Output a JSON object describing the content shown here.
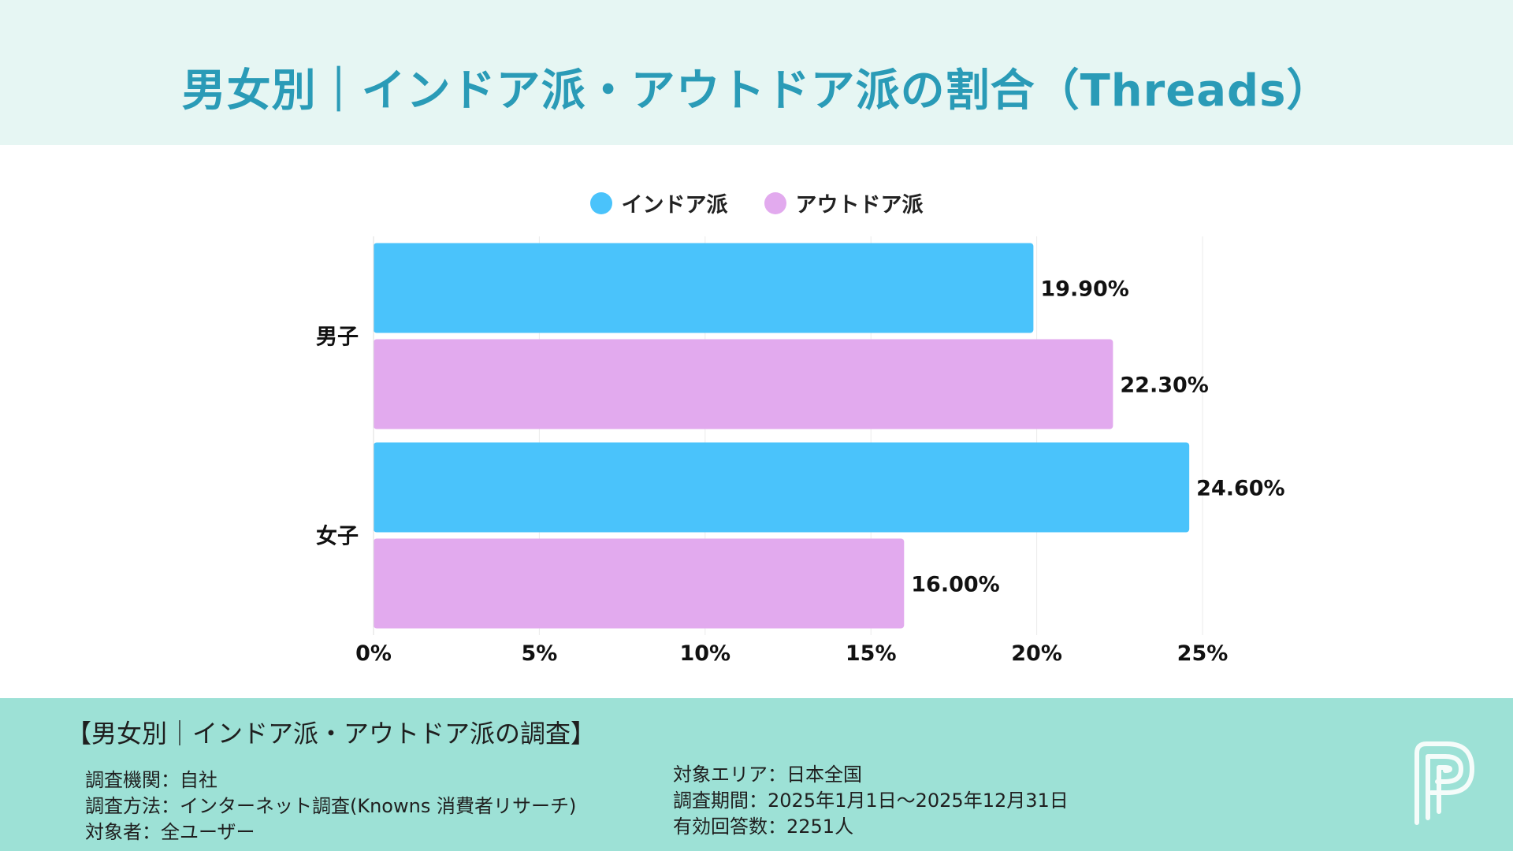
{
  "title": "男女別｜インドア派・アウトドア派の割合（Threads）",
  "colors": {
    "indoor": "#4ac3fb",
    "outdoor": "#e2aaee",
    "title": "#2a9bb7",
    "header_bg": "#e6f6f3",
    "footer_bg": "#9de1d6"
  },
  "chart_data": {
    "type": "bar",
    "orientation": "horizontal",
    "categories": [
      "男子",
      "女子"
    ],
    "series": [
      {
        "name": "インドア派",
        "values": [
          19.9,
          24.6
        ],
        "labels": [
          "19.90%",
          "24.60%"
        ],
        "color": "#4ac3fb"
      },
      {
        "name": "アウトドア派",
        "values": [
          22.3,
          16.0
        ],
        "labels": [
          "22.30%",
          "16.00%"
        ],
        "color": "#e2aaee"
      }
    ],
    "xlim": [
      0,
      25
    ],
    "x_ticks": [
      "0%",
      "5%",
      "10%",
      "15%",
      "20%",
      "25%"
    ],
    "grid": true,
    "legend_position": "top-center"
  },
  "footer": {
    "title": "【男女別｜インドア派・アウトドア派の調査】",
    "left_lines": [
      "調査機関：自社",
      "調査方法：インターネット調査(Knowns 消費者リサーチ)",
      "対象者：全ユーザー"
    ],
    "right_lines": [
      "対象エリア：日本全国",
      "調査期間：2025年1月1日〜2025年12月31日",
      "有効回答数：2251人"
    ]
  },
  "logo_icon": "p-logo-icon"
}
